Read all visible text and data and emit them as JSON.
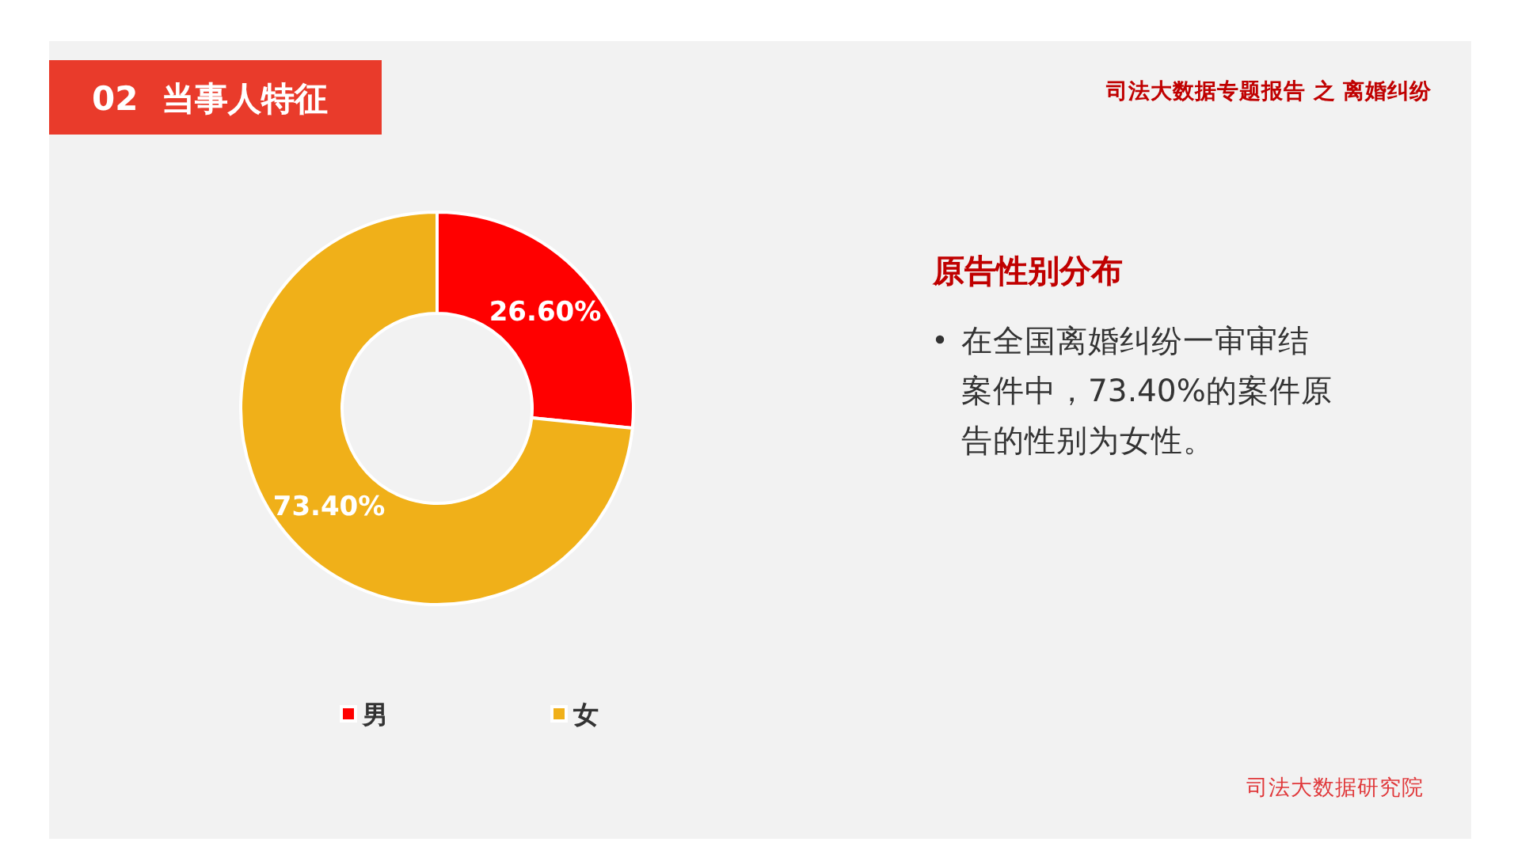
{
  "chart_data": {
    "type": "donut",
    "title": "原告性别分布",
    "categories": [
      "男",
      "女"
    ],
    "values": [
      26.6,
      73.4
    ],
    "colors": [
      "#ff0000",
      "#f0b019"
    ],
    "value_labels": [
      "26.60%",
      "73.40%"
    ],
    "legend": "bottom",
    "annotations": [
      "02  当事人特征",
      "司法大数据专题报告 之 离婚纠纷",
      "在全国离婚纠纷一审审结案件中，73.40%的案件原告的性别为女性。",
      "司法大数据研究院"
    ]
  }
}
